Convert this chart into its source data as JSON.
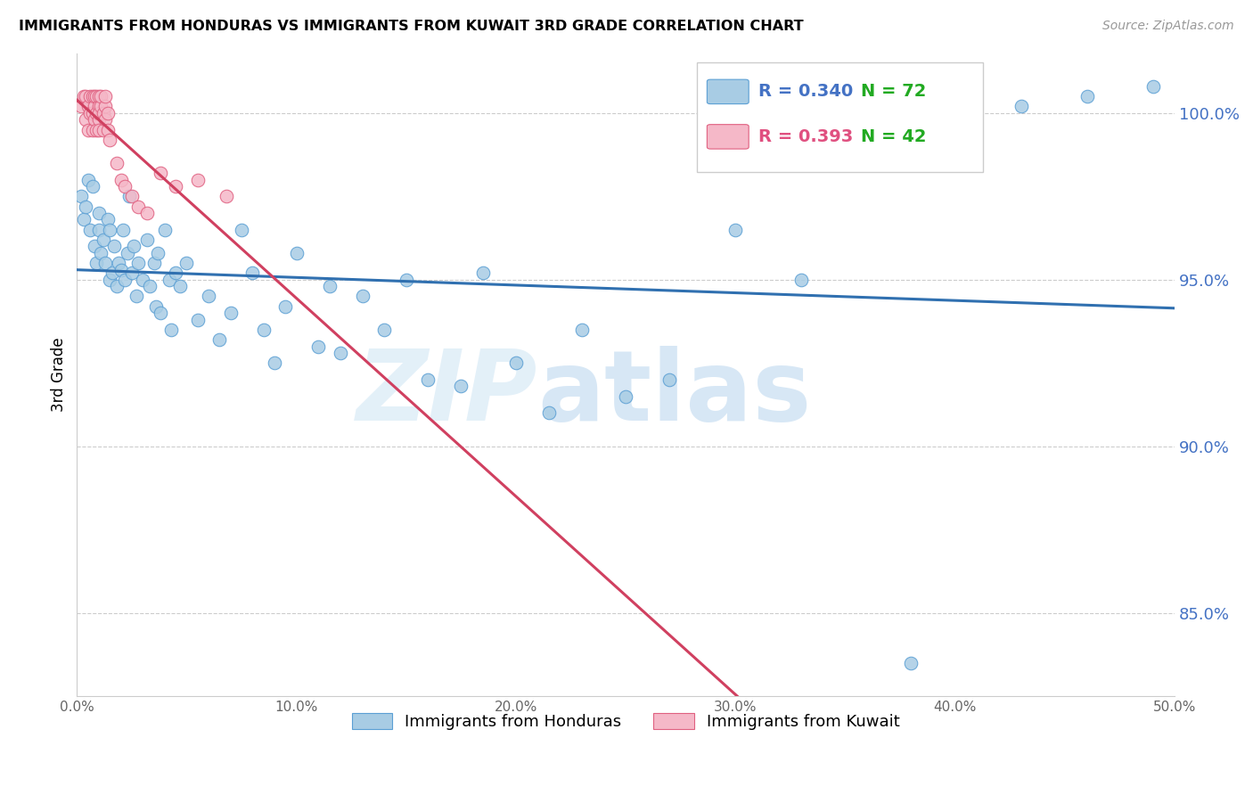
{
  "title": "IMMIGRANTS FROM HONDURAS VS IMMIGRANTS FROM KUWAIT 3RD GRADE CORRELATION CHART",
  "source": "Source: ZipAtlas.com",
  "ylabel": "3rd Grade",
  "xlim": [
    0.0,
    0.5
  ],
  "ylim": [
    82.5,
    101.8
  ],
  "y_ticks": [
    85.0,
    90.0,
    95.0,
    100.0
  ],
  "y_tick_labels": [
    "85.0%",
    "90.0%",
    "95.0%",
    "100.0%"
  ],
  "x_ticks": [
    0.0,
    0.1,
    0.2,
    0.3,
    0.4,
    0.5
  ],
  "x_tick_labels": [
    "0.0%",
    "10.0%",
    "20.0%",
    "30.0%",
    "40.0%",
    "50.0%"
  ],
  "legend_R_blue": "0.340",
  "legend_N_blue": "72",
  "legend_R_pink": "0.393",
  "legend_N_pink": "42",
  "legend_label_blue": "Immigrants from Honduras",
  "legend_label_pink": "Immigrants from Kuwait",
  "color_blue_fill": "#a8cce4",
  "color_blue_edge": "#5b9fd4",
  "color_blue_line": "#3070b0",
  "color_pink_fill": "#f5b8c8",
  "color_pink_edge": "#e06080",
  "color_pink_line": "#d04060",
  "color_ytick": "#4472c4",
  "color_legend_R_blue": "#4472c4",
  "color_legend_N_blue": "#22aa22",
  "color_legend_R_pink": "#e05080",
  "color_legend_N_pink": "#22aa22",
  "blue_scatter_x": [
    0.002,
    0.003,
    0.004,
    0.005,
    0.006,
    0.007,
    0.008,
    0.009,
    0.01,
    0.01,
    0.011,
    0.012,
    0.013,
    0.014,
    0.015,
    0.015,
    0.016,
    0.017,
    0.018,
    0.019,
    0.02,
    0.021,
    0.022,
    0.023,
    0.024,
    0.025,
    0.026,
    0.027,
    0.028,
    0.03,
    0.032,
    0.033,
    0.035,
    0.036,
    0.037,
    0.038,
    0.04,
    0.042,
    0.043,
    0.045,
    0.047,
    0.05,
    0.055,
    0.06,
    0.065,
    0.07,
    0.075,
    0.08,
    0.085,
    0.09,
    0.095,
    0.1,
    0.11,
    0.115,
    0.12,
    0.13,
    0.14,
    0.15,
    0.16,
    0.175,
    0.185,
    0.2,
    0.215,
    0.23,
    0.25,
    0.27,
    0.3,
    0.33,
    0.38,
    0.43,
    0.46,
    0.49
  ],
  "blue_scatter_y": [
    97.5,
    96.8,
    97.2,
    98.0,
    96.5,
    97.8,
    96.0,
    95.5,
    96.5,
    97.0,
    95.8,
    96.2,
    95.5,
    96.8,
    95.0,
    96.5,
    95.2,
    96.0,
    94.8,
    95.5,
    95.3,
    96.5,
    95.0,
    95.8,
    97.5,
    95.2,
    96.0,
    94.5,
    95.5,
    95.0,
    96.2,
    94.8,
    95.5,
    94.2,
    95.8,
    94.0,
    96.5,
    95.0,
    93.5,
    95.2,
    94.8,
    95.5,
    93.8,
    94.5,
    93.2,
    94.0,
    96.5,
    95.2,
    93.5,
    92.5,
    94.2,
    95.8,
    93.0,
    94.8,
    92.8,
    94.5,
    93.5,
    95.0,
    92.0,
    91.8,
    95.2,
    92.5,
    91.0,
    93.5,
    91.5,
    92.0,
    96.5,
    95.0,
    83.5,
    100.2,
    100.5,
    100.8
  ],
  "pink_scatter_x": [
    0.002,
    0.003,
    0.004,
    0.004,
    0.005,
    0.005,
    0.006,
    0.006,
    0.007,
    0.007,
    0.007,
    0.008,
    0.008,
    0.008,
    0.009,
    0.009,
    0.009,
    0.01,
    0.01,
    0.01,
    0.01,
    0.01,
    0.011,
    0.011,
    0.012,
    0.012,
    0.013,
    0.013,
    0.013,
    0.014,
    0.014,
    0.015,
    0.018,
    0.02,
    0.022,
    0.025,
    0.028,
    0.032,
    0.038,
    0.045,
    0.055,
    0.068
  ],
  "pink_scatter_y": [
    100.2,
    100.5,
    99.8,
    100.5,
    99.5,
    100.2,
    100.0,
    100.5,
    99.5,
    100.0,
    100.5,
    99.8,
    100.2,
    100.5,
    99.5,
    100.0,
    100.5,
    99.8,
    100.2,
    100.5,
    99.5,
    100.0,
    100.2,
    100.5,
    99.5,
    100.0,
    99.8,
    100.2,
    100.5,
    99.5,
    100.0,
    99.2,
    98.5,
    98.0,
    97.8,
    97.5,
    97.2,
    97.0,
    98.2,
    97.8,
    98.0,
    97.5
  ]
}
